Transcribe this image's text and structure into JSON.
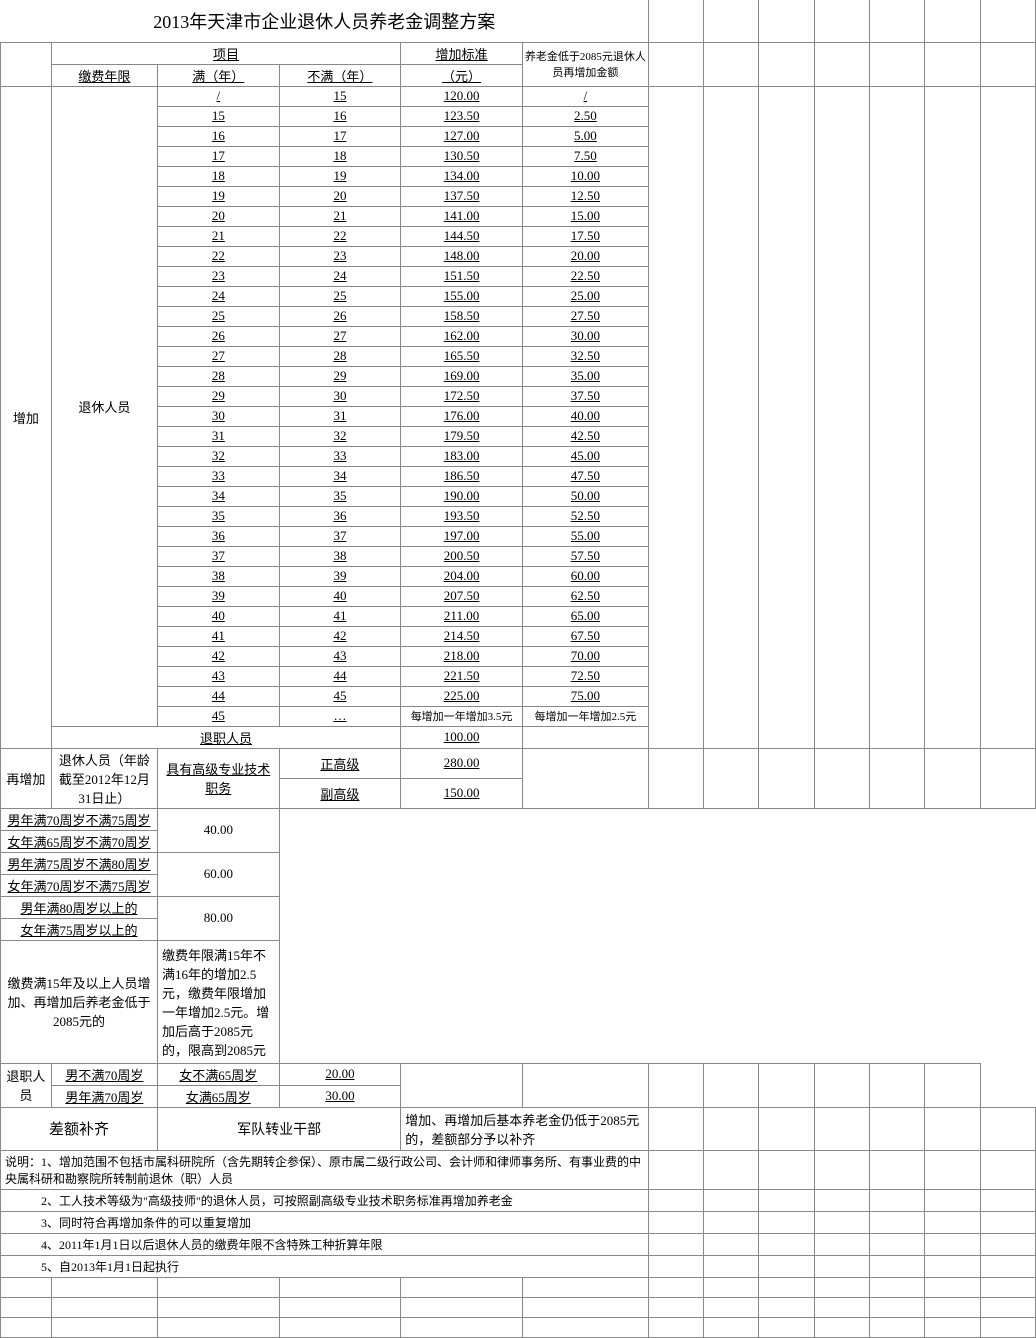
{
  "title": "2013年天津市企业退休人员养老金调整方案",
  "header": {
    "project": "项目",
    "increase_std": "增加标准",
    "note_header": "养老金低于2085元退休人员再增加金额",
    "fee_years": "缴费年限",
    "full_years": "满（年）",
    "not_full_years": "不满（年）",
    "yuan": "（元）"
  },
  "section1": {
    "label": "增加",
    "sublabel": "退休人员",
    "rows": [
      {
        "full": "/",
        "notfull": "15",
        "val": "120.00",
        "extra": "/"
      },
      {
        "full": "15",
        "notfull": "16",
        "val": "123.50",
        "extra": "2.50"
      },
      {
        "full": "16",
        "notfull": "17",
        "val": "127.00",
        "extra": "5.00"
      },
      {
        "full": "17",
        "notfull": "18",
        "val": "130.50",
        "extra": "7.50"
      },
      {
        "full": "18",
        "notfull": "19",
        "val": "134.00",
        "extra": "10.00"
      },
      {
        "full": "19",
        "notfull": "20",
        "val": "137.50",
        "extra": "12.50"
      },
      {
        "full": "20",
        "notfull": "21",
        "val": "141.00",
        "extra": "15.00"
      },
      {
        "full": "21",
        "notfull": "22",
        "val": "144.50",
        "extra": "17.50"
      },
      {
        "full": "22",
        "notfull": "23",
        "val": "148.00",
        "extra": "20.00"
      },
      {
        "full": "23",
        "notfull": "24",
        "val": "151.50",
        "extra": "22.50"
      },
      {
        "full": "24",
        "notfull": "25",
        "val": "155.00",
        "extra": "25.00"
      },
      {
        "full": "25",
        "notfull": "26",
        "val": "158.50",
        "extra": "27.50"
      },
      {
        "full": "26",
        "notfull": "27",
        "val": "162.00",
        "extra": "30.00"
      },
      {
        "full": "27",
        "notfull": "28",
        "val": "165.50",
        "extra": "32.50"
      },
      {
        "full": "28",
        "notfull": "29",
        "val": "169.00",
        "extra": "35.00"
      },
      {
        "full": "29",
        "notfull": "30",
        "val": "172.50",
        "extra": "37.50"
      },
      {
        "full": "30",
        "notfull": "31",
        "val": "176.00",
        "extra": "40.00"
      },
      {
        "full": "31",
        "notfull": "32",
        "val": "179.50",
        "extra": "42.50"
      },
      {
        "full": "32",
        "notfull": "33",
        "val": "183.00",
        "extra": "45.00"
      },
      {
        "full": "33",
        "notfull": "34",
        "val": "186.50",
        "extra": "47.50"
      },
      {
        "full": "34",
        "notfull": "35",
        "val": "190.00",
        "extra": "50.00"
      },
      {
        "full": "35",
        "notfull": "36",
        "val": "193.50",
        "extra": "52.50"
      },
      {
        "full": "36",
        "notfull": "37",
        "val": "197.00",
        "extra": "55.00"
      },
      {
        "full": "37",
        "notfull": "38",
        "val": "200.50",
        "extra": "57.50"
      },
      {
        "full": "38",
        "notfull": "39",
        "val": "204.00",
        "extra": "60.00"
      },
      {
        "full": "39",
        "notfull": "40",
        "val": "207.50",
        "extra": "62.50"
      },
      {
        "full": "40",
        "notfull": "41",
        "val": "211.00",
        "extra": "65.00"
      },
      {
        "full": "41",
        "notfull": "42",
        "val": "214.50",
        "extra": "67.50"
      },
      {
        "full": "42",
        "notfull": "43",
        "val": "218.00",
        "extra": "70.00"
      },
      {
        "full": "43",
        "notfull": "44",
        "val": "221.50",
        "extra": "72.50"
      },
      {
        "full": "44",
        "notfull": "45",
        "val": "225.00",
        "extra": "75.00"
      },
      {
        "full": "45",
        "notfull": "…",
        "val": "每增加一年增加3.5元",
        "extra": "每增加一年增加2.5元"
      }
    ],
    "retired_label": "退职人员",
    "retired_val": "100.00"
  },
  "section2": {
    "label": "再增加",
    "sublabel": "退休人员（年龄截至2012年12月31日止）",
    "senior_title": "具有高级专业技术职务",
    "senior_rows": [
      {
        "rank": "正高级",
        "val": "280.00"
      },
      {
        "rank": "副高级",
        "val": "150.00"
      }
    ],
    "age_rows": [
      {
        "m": "男年满70周岁不满75周岁",
        "f": "女年满65周岁不满70周岁",
        "val": "40.00"
      },
      {
        "m": "男年满75周岁不满80周岁",
        "f": "女年满70周岁不满75周岁",
        "val": "60.00"
      },
      {
        "m": "男年满80周岁以上的",
        "f": "女年满75周岁以上的",
        "val": "80.00"
      }
    ],
    "low_label": "缴费满15年及以上人员增加、再增加后养老金低于2085元的",
    "low_val": "缴费年限满15年不满16年的增加2.5元，缴费年限增加一年增加2.5元。增加后高于2085元的，限高到2085元",
    "retired2_label": "退职人员",
    "retired2_rows": [
      {
        "m": "男不满70周岁",
        "f": "女不满65周岁",
        "val": "20.00"
      },
      {
        "m": "男年满70周岁",
        "f": "女满65周岁",
        "val": "30.00"
      }
    ]
  },
  "diff": {
    "label": "差额补齐",
    "mid": "军队转业干部",
    "val": "增加、再增加后基本养老金仍低于2085元的，差额部分予以补齐"
  },
  "notes": [
    "说明：1、增加范围不包括市属科研院所（含先期转企参保）、原市属二级行政公司、会计师和律师事务所、有事业费的中央属科研和勘察院所转制前退休（职）人员",
    "　　　2、工人技术等级为\"高级技师\"的退休人员，可按照副高级专业技术职务标准再增加养老金",
    "　　　3、同时符合再增加条件的可以重复增加",
    "　　　4、2011年1月1日以后退休人员的缴费年限不含特殊工种折算年限",
    "　　　5、自2013年1月1日起执行"
  ]
}
